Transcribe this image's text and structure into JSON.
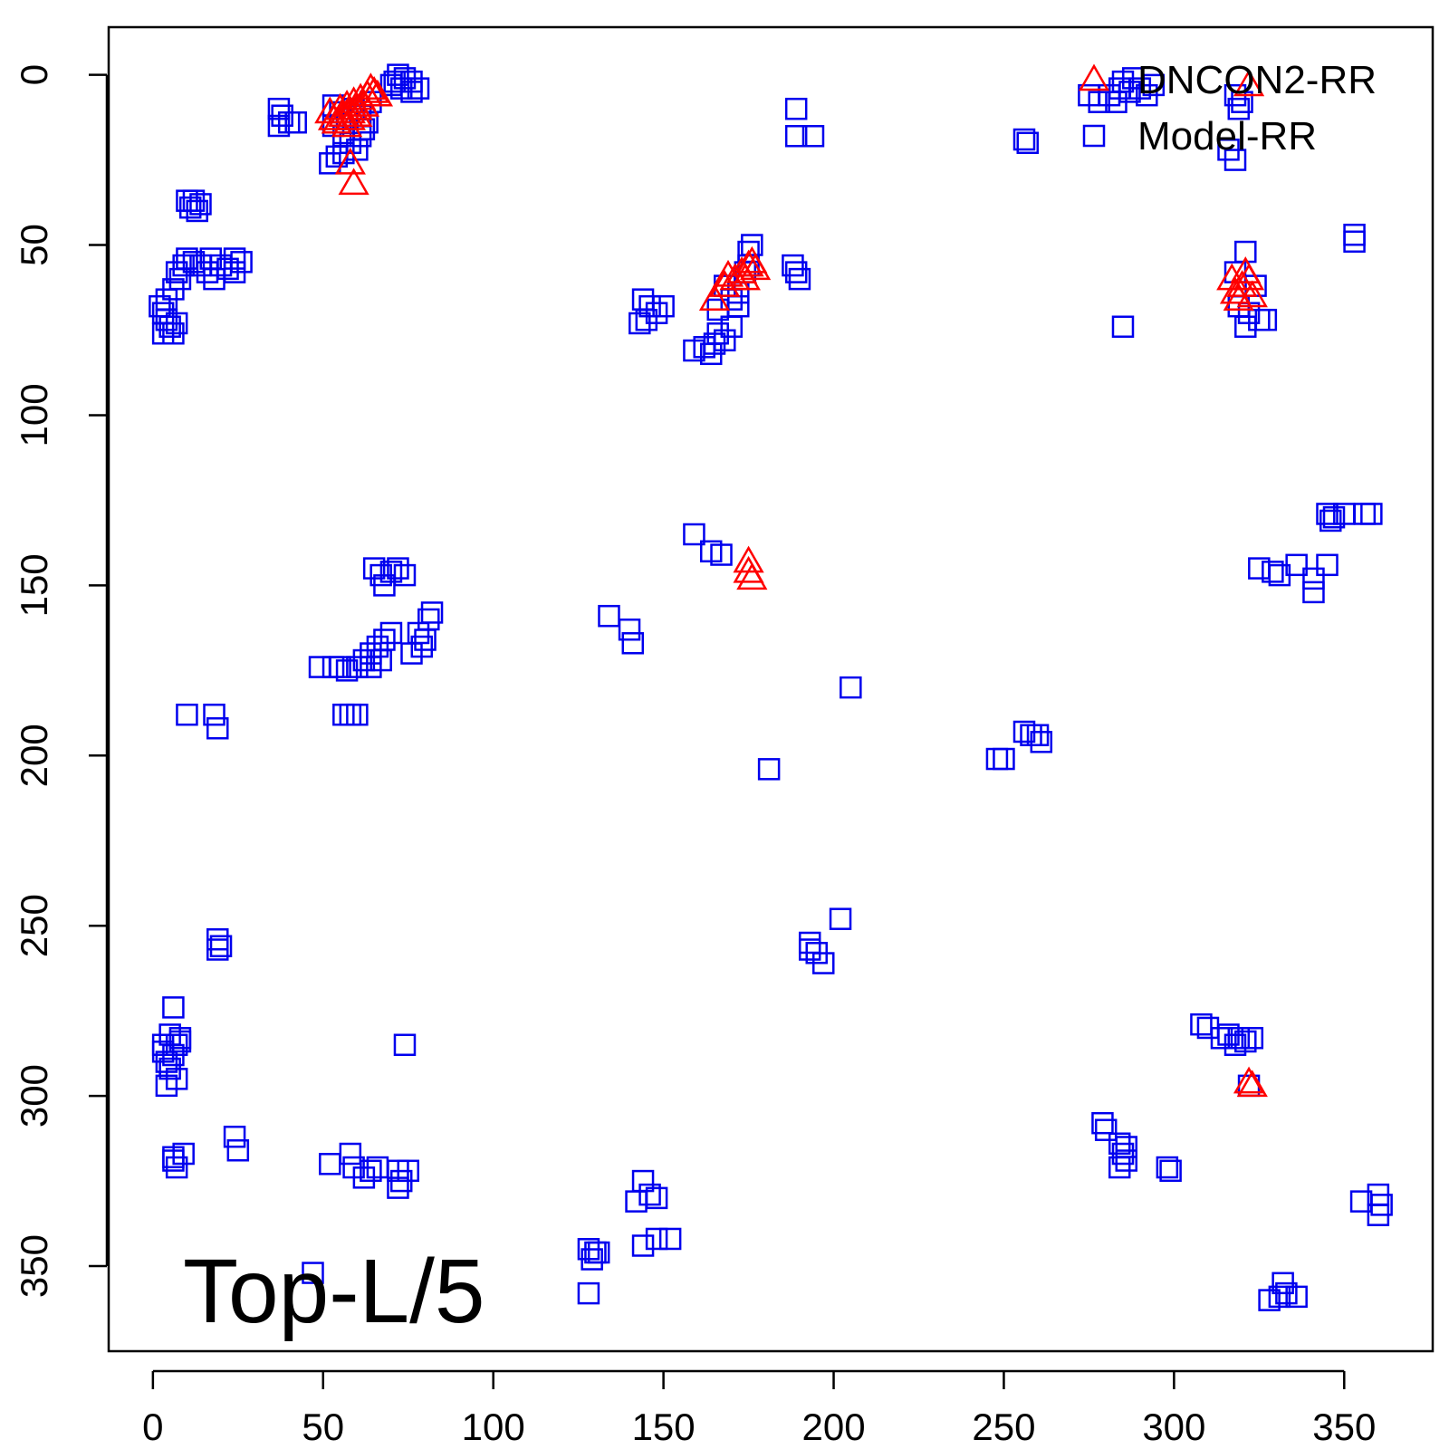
{
  "chart_data": {
    "type": "scatter",
    "xlim": [
      -13,
      376
    ],
    "ylim": [
      375,
      -14
    ],
    "y_reversed": true,
    "x_ticks": [
      0,
      50,
      100,
      150,
      200,
      250,
      300,
      350
    ],
    "y_ticks": [
      0,
      50,
      100,
      150,
      200,
      250,
      300,
      350
    ],
    "grid": false,
    "legend_position": "top-right",
    "annotation": "Top-L/5",
    "series": [
      {
        "name": "Model-RR",
        "marker": "square",
        "color": "#0000ee",
        "points": [
          [
            72,
            0
          ],
          [
            74,
            1
          ],
          [
            76,
            2
          ],
          [
            70,
            3
          ],
          [
            73,
            4
          ],
          [
            76,
            5
          ],
          [
            78,
            4
          ],
          [
            71,
            2
          ],
          [
            53,
            9
          ],
          [
            55,
            11
          ],
          [
            57,
            13
          ],
          [
            59,
            10
          ],
          [
            61,
            12
          ],
          [
            63,
            14
          ],
          [
            62,
            16
          ],
          [
            56,
            18
          ],
          [
            58,
            20
          ],
          [
            60,
            22
          ],
          [
            54,
            24
          ],
          [
            52,
            26
          ],
          [
            56,
            23
          ],
          [
            61,
            18
          ],
          [
            53,
            15
          ],
          [
            64,
            8
          ],
          [
            37,
            10
          ],
          [
            38,
            12
          ],
          [
            40,
            14
          ],
          [
            37,
            15
          ],
          [
            42,
            14
          ],
          [
            10,
            37
          ],
          [
            12,
            37
          ],
          [
            14,
            38
          ],
          [
            13,
            40
          ],
          [
            11,
            39
          ],
          [
            2,
            68
          ],
          [
            3,
            70
          ],
          [
            4,
            72
          ],
          [
            5,
            74
          ],
          [
            6,
            76
          ],
          [
            3,
            76
          ],
          [
            7,
            73
          ],
          [
            4,
            66
          ],
          [
            6,
            63
          ],
          [
            8,
            60
          ],
          [
            7,
            58
          ],
          [
            9,
            56
          ],
          [
            10,
            54
          ],
          [
            12,
            55
          ],
          [
            14,
            56
          ],
          [
            16,
            58
          ],
          [
            18,
            60
          ],
          [
            20,
            56
          ],
          [
            24,
            54
          ],
          [
            26,
            55
          ],
          [
            24,
            58
          ],
          [
            17,
            54
          ],
          [
            22,
            57
          ],
          [
            144,
            66
          ],
          [
            146,
            68
          ],
          [
            148,
            70
          ],
          [
            145,
            72
          ],
          [
            150,
            68
          ],
          [
            143,
            73
          ],
          [
            159,
            81
          ],
          [
            162,
            80
          ],
          [
            165,
            79
          ],
          [
            168,
            78
          ],
          [
            164,
            82
          ],
          [
            166,
            76
          ],
          [
            170,
            74
          ],
          [
            166,
            69
          ],
          [
            170,
            66
          ],
          [
            172,
            64
          ],
          [
            175,
            52
          ],
          [
            176,
            50
          ],
          [
            175,
            56
          ],
          [
            174,
            58
          ],
          [
            168,
            62
          ],
          [
            172,
            68
          ],
          [
            189,
            10
          ],
          [
            189,
            18
          ],
          [
            194,
            18
          ],
          [
            188,
            56
          ],
          [
            189,
            58
          ],
          [
            190,
            60
          ],
          [
            256,
            19
          ],
          [
            257,
            20
          ],
          [
            275,
            6
          ],
          [
            278,
            8
          ],
          [
            281,
            6
          ],
          [
            283,
            8
          ],
          [
            285,
            2
          ],
          [
            287,
            5
          ],
          [
            290,
            4
          ],
          [
            292,
            6
          ],
          [
            294,
            3
          ],
          [
            288,
            1
          ],
          [
            284,
            4
          ],
          [
            318,
            6
          ],
          [
            319,
            10
          ],
          [
            320,
            8
          ],
          [
            316,
            22
          ],
          [
            318,
            25
          ],
          [
            285,
            74
          ],
          [
            321,
            52
          ],
          [
            318,
            58
          ],
          [
            324,
            62
          ],
          [
            322,
            70
          ],
          [
            325,
            72
          ],
          [
            321,
            74
          ],
          [
            327,
            72
          ],
          [
            319,
            68
          ],
          [
            353,
            47
          ],
          [
            353,
            49
          ],
          [
            10,
            188
          ],
          [
            18,
            188
          ],
          [
            19,
            192
          ],
          [
            53,
            174
          ],
          [
            55,
            174
          ],
          [
            57,
            175
          ],
          [
            60,
            174
          ],
          [
            62,
            172
          ],
          [
            64,
            170
          ],
          [
            66,
            168
          ],
          [
            68,
            166
          ],
          [
            70,
            164
          ],
          [
            64,
            174
          ],
          [
            67,
            172
          ],
          [
            56,
            188
          ],
          [
            58,
            188
          ],
          [
            60,
            188
          ],
          [
            49,
            174
          ],
          [
            65,
            145
          ],
          [
            67,
            147
          ],
          [
            70,
            146
          ],
          [
            72,
            145
          ],
          [
            74,
            147
          ],
          [
            68,
            150
          ],
          [
            78,
            164
          ],
          [
            80,
            166
          ],
          [
            79,
            168
          ],
          [
            81,
            160
          ],
          [
            82,
            158
          ],
          [
            76,
            170
          ],
          [
            134,
            159
          ],
          [
            140,
            163
          ],
          [
            141,
            167
          ],
          [
            159,
            135
          ],
          [
            164,
            140
          ],
          [
            167,
            141
          ],
          [
            205,
            180
          ],
          [
            181,
            204
          ],
          [
            345,
            129
          ],
          [
            346,
            131
          ],
          [
            347,
            130
          ],
          [
            350,
            129
          ],
          [
            356,
            129
          ],
          [
            358,
            129
          ],
          [
            345,
            144
          ],
          [
            336,
            144
          ],
          [
            331,
            147
          ],
          [
            325,
            145
          ],
          [
            329,
            146
          ],
          [
            341,
            148
          ],
          [
            341,
            152
          ],
          [
            248,
            201
          ],
          [
            250,
            201
          ],
          [
            256,
            193
          ],
          [
            258,
            194
          ],
          [
            261,
            196
          ],
          [
            260,
            194
          ],
          [
            193,
            255
          ],
          [
            195,
            258
          ],
          [
            197,
            261
          ],
          [
            193,
            257
          ],
          [
            202,
            248
          ],
          [
            19,
            254
          ],
          [
            20,
            256
          ],
          [
            19,
            257
          ],
          [
            3,
            287
          ],
          [
            4,
            290
          ],
          [
            5,
            292
          ],
          [
            6,
            288
          ],
          [
            7,
            285
          ],
          [
            8,
            283
          ],
          [
            5,
            282
          ],
          [
            6,
            274
          ],
          [
            4,
            297
          ],
          [
            7,
            295
          ],
          [
            8,
            284
          ],
          [
            3,
            285
          ],
          [
            74,
            285
          ],
          [
            6,
            318
          ],
          [
            7,
            321
          ],
          [
            9,
            317
          ],
          [
            6,
            319
          ],
          [
            24,
            312
          ],
          [
            25,
            316
          ],
          [
            52,
            320
          ],
          [
            58,
            317
          ],
          [
            59,
            321
          ],
          [
            62,
            324
          ],
          [
            64,
            322
          ],
          [
            66,
            321
          ],
          [
            72,
            322
          ],
          [
            73,
            325
          ],
          [
            75,
            322
          ],
          [
            72,
            327
          ],
          [
            308,
            279
          ],
          [
            310,
            280
          ],
          [
            314,
            283
          ],
          [
            316,
            282
          ],
          [
            318,
            285
          ],
          [
            319,
            283
          ],
          [
            321,
            284
          ],
          [
            323,
            283
          ],
          [
            322,
            297
          ],
          [
            279,
            308
          ],
          [
            280,
            310
          ],
          [
            284,
            314
          ],
          [
            285,
            317
          ],
          [
            286,
            319
          ],
          [
            284,
            321
          ],
          [
            286,
            315
          ],
          [
            298,
            321
          ],
          [
            299,
            322
          ],
          [
            144,
            325
          ],
          [
            146,
            329
          ],
          [
            148,
            330
          ],
          [
            142,
            331
          ],
          [
            144,
            344
          ],
          [
            148,
            342
          ],
          [
            152,
            342
          ],
          [
            128,
            345
          ],
          [
            130,
            346
          ],
          [
            129,
            348
          ],
          [
            131,
            346
          ],
          [
            128,
            358
          ],
          [
            332,
            355
          ],
          [
            328,
            360
          ],
          [
            331,
            359
          ],
          [
            333,
            358
          ],
          [
            336,
            359
          ],
          [
            355,
            331
          ],
          [
            360,
            329
          ],
          [
            361,
            332
          ],
          [
            360,
            335
          ],
          [
            47,
            352
          ]
        ]
      },
      {
        "name": "DNCON2-RR",
        "marker": "triangle",
        "color": "#ff0000",
        "points": [
          [
            52,
            11
          ],
          [
            53,
            13
          ],
          [
            55,
            10
          ],
          [
            56,
            12
          ],
          [
            57,
            9
          ],
          [
            58,
            11
          ],
          [
            59,
            8
          ],
          [
            60,
            10
          ],
          [
            61,
            7
          ],
          [
            62,
            9
          ],
          [
            63,
            6
          ],
          [
            64,
            4
          ],
          [
            65,
            5
          ],
          [
            66,
            6
          ],
          [
            54,
            14
          ],
          [
            57,
            15
          ],
          [
            58,
            13
          ],
          [
            60,
            12
          ],
          [
            58,
            26
          ],
          [
            59,
            32
          ],
          [
            165,
            66
          ],
          [
            168,
            62
          ],
          [
            169,
            59
          ],
          [
            171,
            60
          ],
          [
            173,
            58
          ],
          [
            175,
            56
          ],
          [
            176,
            55
          ],
          [
            177,
            57
          ],
          [
            174,
            60
          ],
          [
            175,
            143
          ],
          [
            175,
            146
          ],
          [
            176,
            148
          ],
          [
            317,
            60
          ],
          [
            318,
            64
          ],
          [
            319,
            66
          ],
          [
            320,
            62
          ],
          [
            321,
            58
          ],
          [
            322,
            60
          ],
          [
            323,
            65
          ],
          [
            322,
            3
          ],
          [
            322,
            296
          ],
          [
            323,
            297
          ]
        ]
      }
    ]
  }
}
